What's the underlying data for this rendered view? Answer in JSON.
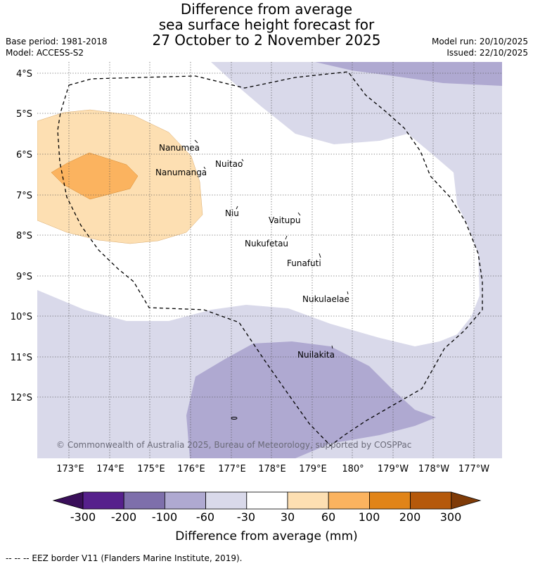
{
  "title": {
    "line1": "Difference from average",
    "line2": "sea surface height forecast for",
    "line3": "27 October to 2 November 2025"
  },
  "meta": {
    "base_period": "Base period: 1981-2018",
    "model": "Model: ACCESS-S2",
    "model_run": "Model run: 20/10/2025",
    "issued": "Issued: 22/10/2025"
  },
  "map": {
    "lat_labels": [
      "4°S",
      "5°S",
      "6°S",
      "7°S",
      "8°S",
      "9°S",
      "10°S",
      "11°S",
      "12°S"
    ],
    "lon_labels": [
      "173°E",
      "174°E",
      "175°E",
      "176°E",
      "177°E",
      "178°E",
      "179°E",
      "180°",
      "179°W",
      "178°W",
      "177°W"
    ],
    "places": [
      "Nanumea",
      "Nuitao",
      "Nanumanga",
      "Niu",
      "Vaitupu",
      "Nukufetau",
      "Funafuti",
      "Nukulaelae",
      "Nuilakita"
    ],
    "copyright": "© Commonwealth of Australia 2025, Bureau of Meteorology, supported by COSPPac"
  },
  "colorbar": {
    "ticks": [
      "-300",
      "-200",
      "-100",
      "-60",
      "-30",
      "30",
      "60",
      "100",
      "200",
      "300"
    ],
    "colors": [
      "#3a0f5a",
      "#56208c",
      "#7e6fab",
      "#afa9d1",
      "#d9d9ea",
      "#ffffff",
      "#fddfb2",
      "#fbb35f",
      "#e18418",
      "#b5590b",
      "#7f3b08"
    ],
    "label": "Difference from average (mm)"
  },
  "footer": "--  --  -- EEZ border V11 (Flanders Marine Institute, 2019)."
}
